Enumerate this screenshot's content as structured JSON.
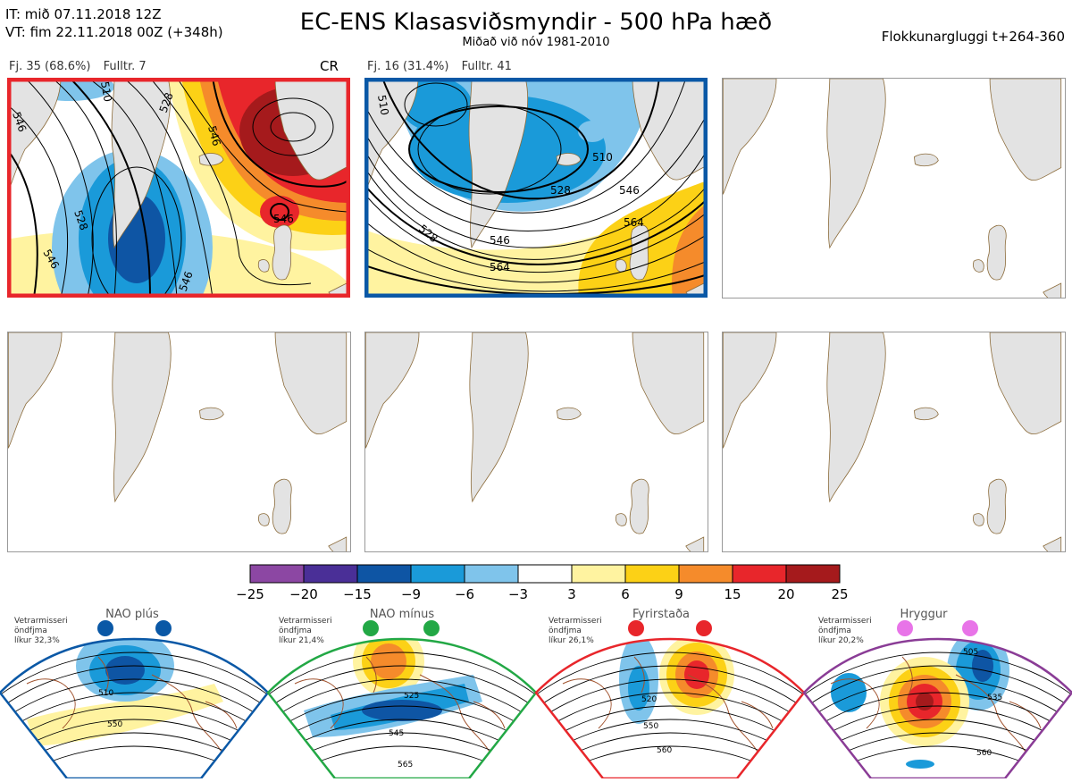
{
  "header": {
    "it_line": "IT: mið 07.11.2018 12Z",
    "vt_line": "VT: fim 22.11.2018 00Z  (+348h)",
    "title": "EC-ENS Klasasviðsmyndir - 500 hPa hæð",
    "subtitle": "Miðað við nóv 1981-2010",
    "window_label": "Flokkunargluggi t+264-360"
  },
  "clusters": [
    {
      "count_label": "Fj. 35 (68.6%)",
      "rep_label": "Fulltr. 7",
      "regime": "CR",
      "border_color": "#e8262b",
      "contour_labels": [
        "546",
        "528",
        "546",
        "546",
        "546",
        "528",
        "510",
        "546"
      ]
    },
    {
      "count_label": "Fj. 16 (31.4%)",
      "rep_label": "Fulltr. 41",
      "border_color": "#0a58a6",
      "contour_labels": [
        "510",
        "528",
        "546",
        "546",
        "564",
        "564",
        "528",
        "510"
      ]
    }
  ],
  "colorbar": {
    "ticks": [
      "−25",
      "−20",
      "−15",
      "−9",
      "−6",
      "−3",
      "3",
      "6",
      "9",
      "15",
      "20",
      "25"
    ],
    "colors": [
      "#8c47a3",
      "#4a2f97",
      "#0e55a4",
      "#1a9ad9",
      "#7fc4eb",
      "#ffffff",
      "#fff3a0",
      "#fcd116",
      "#f58b2b",
      "#e8262b",
      "#a51a1c"
    ]
  },
  "regimes": [
    {
      "name": "NAO plús",
      "season": "Vetrarmisseri",
      "season2": "öndfjma",
      "prob": "líkur 32,3%",
      "color": "#0a58a6",
      "labels": [
        "510",
        "550"
      ]
    },
    {
      "name": "NAO mínus",
      "season": "Vetrarmisseri",
      "season2": "öndfjma",
      "prob": "líkur 21,4%",
      "color": "#22a845",
      "labels": [
        "525",
        "545",
        "565"
      ]
    },
    {
      "name": "Fyrirstaða",
      "season": "Vetrarmisseri",
      "season2": "öndfjma",
      "prob": "líkur 26,1%",
      "color": "#e8262b",
      "labels": [
        "520",
        "550",
        "560"
      ]
    },
    {
      "name": "Hryggur",
      "season": "Vetrarmisseri",
      "season2": "öndfjma",
      "prob": "líkur 20,2%",
      "color": "#e874e8",
      "labels": [
        "505",
        "535",
        "560"
      ]
    }
  ]
}
